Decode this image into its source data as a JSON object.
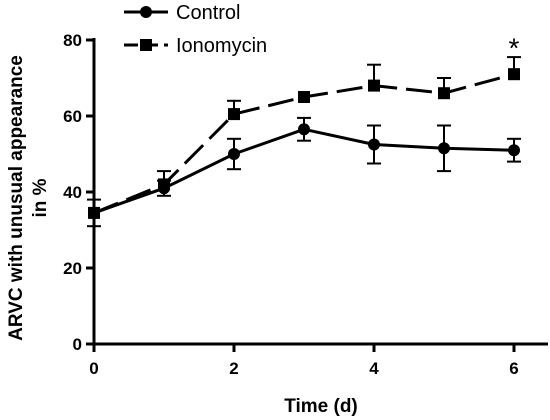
{
  "chart_data": {
    "type": "line",
    "title": "",
    "xlabel": "Time (d)",
    "ylabel_line1": "ARVC with unusual appearance",
    "ylabel_line2": "in %",
    "xlim": [
      0,
      6
    ],
    "ylim": [
      0,
      80
    ],
    "xticks": [
      0,
      2,
      4,
      6
    ],
    "yticks": [
      0,
      20,
      40,
      60,
      80
    ],
    "grid": false,
    "legend_position": "top-left",
    "series": [
      {
        "name": "Control",
        "marker": "circle",
        "line_style": "solid",
        "color": "#000000",
        "x": [
          0,
          1,
          2,
          3,
          4,
          5,
          6
        ],
        "y": [
          34.5,
          41,
          50,
          56.5,
          52.5,
          51.5,
          51
        ],
        "err_up": [
          3.5,
          2,
          4,
          3,
          5,
          6,
          3
        ],
        "err_down": [
          3.5,
          2,
          4,
          3,
          5,
          6,
          3
        ]
      },
      {
        "name": "Ionomycin",
        "marker": "square",
        "line_style": "dashed",
        "color": "#000000",
        "x": [
          0,
          1,
          2,
          3,
          4,
          5,
          6
        ],
        "y": [
          34.5,
          42,
          60.5,
          65,
          68,
          66,
          71
        ],
        "err_up": [
          0,
          3.5,
          3.5,
          0,
          5.5,
          4,
          4.5
        ],
        "err_down": [
          0,
          0,
          0,
          0,
          0,
          0,
          0
        ]
      }
    ],
    "annotations": [
      {
        "text": "*",
        "x": 6,
        "y": 78
      }
    ]
  }
}
